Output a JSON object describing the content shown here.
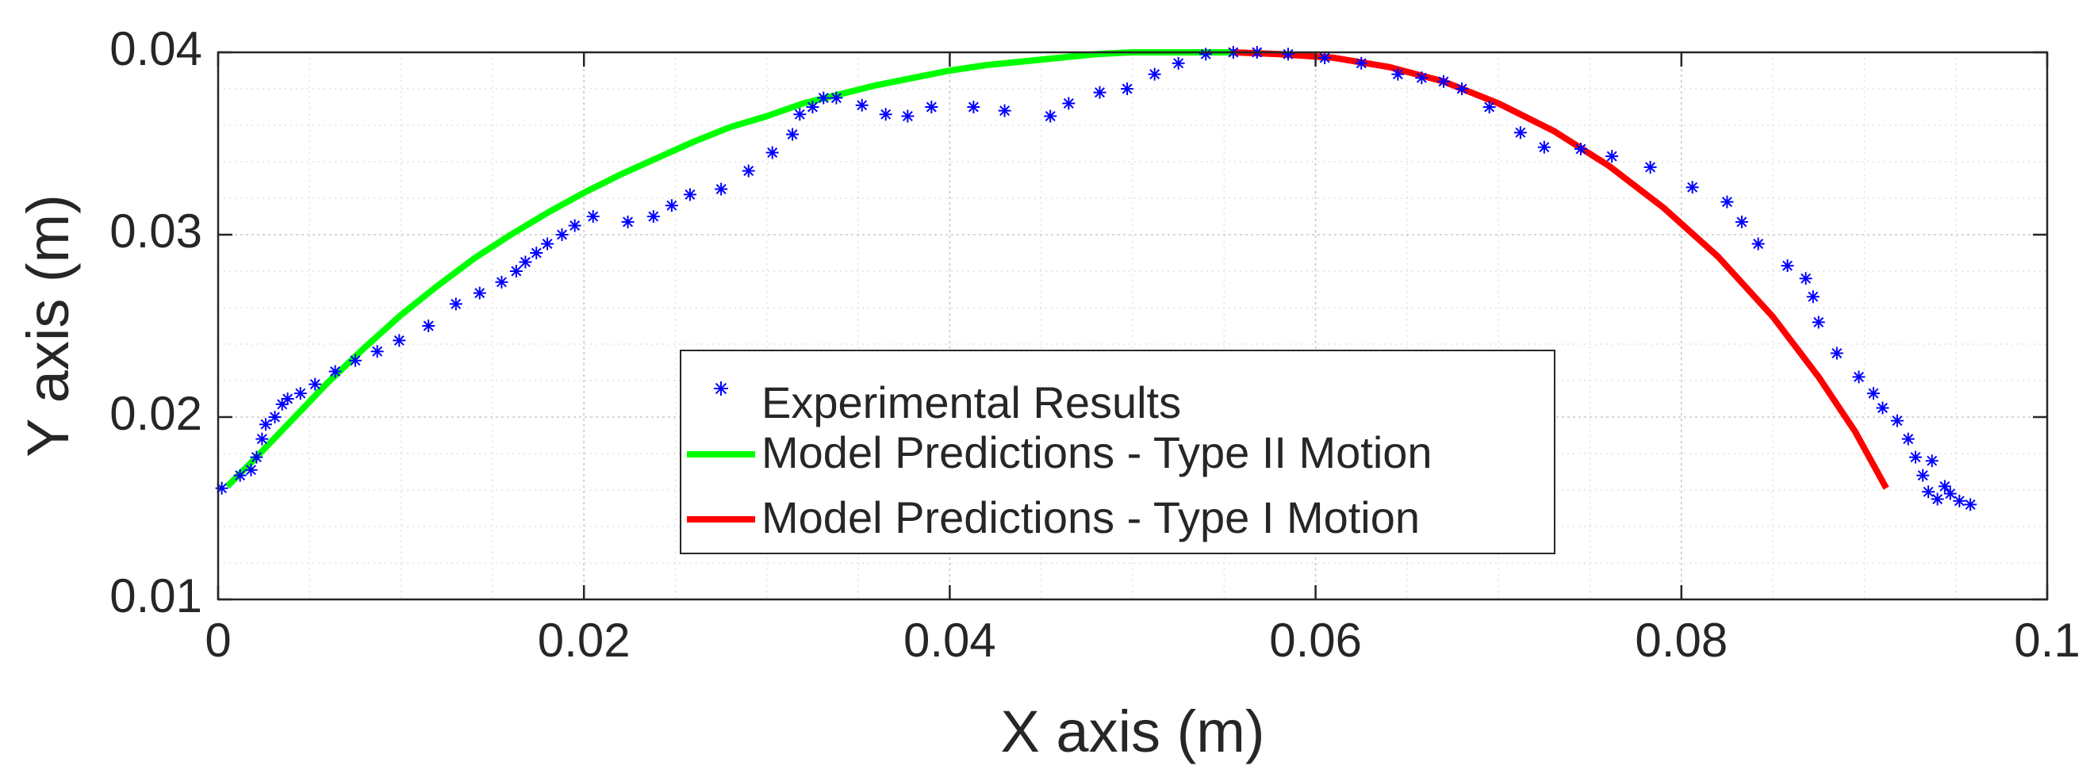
{
  "chart_data": {
    "type": "line",
    "title": "",
    "xlabel": "X axis (m)",
    "ylabel": "Y axis (m)",
    "xlim": [
      0,
      0.1
    ],
    "ylim": [
      0.01,
      0.04
    ],
    "x_ticks": [
      0,
      0.02,
      0.04,
      0.06,
      0.08,
      0.1
    ],
    "x_tick_labels": [
      "0",
      "0.02",
      "0.04",
      "0.06",
      "0.08",
      "0.1"
    ],
    "y_ticks": [
      0.01,
      0.02,
      0.03,
      0.04
    ],
    "y_tick_labels": [
      "0.01",
      "0.02",
      "0.03",
      "0.04"
    ],
    "x_minor_step": 0.005,
    "y_minor_step": 0.002,
    "grid": true,
    "minor_grid": true,
    "legend_position": "center",
    "series": [
      {
        "name": "Experimental Results",
        "kind": "scatter",
        "marker": "*",
        "color": "#0000ff",
        "points": [
          [
            0.0002,
            0.0161
          ],
          [
            0.0012,
            0.0168
          ],
          [
            0.0018,
            0.0171
          ],
          [
            0.0021,
            0.0178
          ],
          [
            0.0024,
            0.0188
          ],
          [
            0.0026,
            0.0196
          ],
          [
            0.0031,
            0.02
          ],
          [
            0.0035,
            0.0207
          ],
          [
            0.0038,
            0.021
          ],
          [
            0.0045,
            0.0213
          ],
          [
            0.0053,
            0.0218
          ],
          [
            0.0064,
            0.0225
          ],
          [
            0.0075,
            0.0231
          ],
          [
            0.0087,
            0.0236
          ],
          [
            0.0099,
            0.0242
          ],
          [
            0.0115,
            0.025
          ],
          [
            0.013,
            0.0262
          ],
          [
            0.0143,
            0.0268
          ],
          [
            0.0155,
            0.0274
          ],
          [
            0.0163,
            0.028
          ],
          [
            0.0168,
            0.0285
          ],
          [
            0.0174,
            0.029
          ],
          [
            0.018,
            0.0295
          ],
          [
            0.0188,
            0.03
          ],
          [
            0.0195,
            0.0305
          ],
          [
            0.0205,
            0.031
          ],
          [
            0.0224,
            0.0307
          ],
          [
            0.0238,
            0.031
          ],
          [
            0.0248,
            0.0316
          ],
          [
            0.0258,
            0.0322
          ],
          [
            0.0275,
            0.0325
          ],
          [
            0.029,
            0.0335
          ],
          [
            0.0303,
            0.0345
          ],
          [
            0.0314,
            0.0355
          ],
          [
            0.0318,
            0.0366
          ],
          [
            0.0325,
            0.037
          ],
          [
            0.0331,
            0.0375
          ],
          [
            0.0338,
            0.0375
          ],
          [
            0.0352,
            0.0371
          ],
          [
            0.0365,
            0.0366
          ],
          [
            0.0377,
            0.0365
          ],
          [
            0.039,
            0.037
          ],
          [
            0.0413,
            0.037
          ],
          [
            0.043,
            0.0368
          ],
          [
            0.0455,
            0.0365
          ],
          [
            0.0465,
            0.0372
          ],
          [
            0.0482,
            0.0378
          ],
          [
            0.0497,
            0.038
          ],
          [
            0.0512,
            0.0388
          ],
          [
            0.0525,
            0.0394
          ],
          [
            0.054,
            0.0399
          ],
          [
            0.0555,
            0.04
          ],
          [
            0.0568,
            0.04
          ],
          [
            0.0585,
            0.0399
          ],
          [
            0.0605,
            0.0397
          ],
          [
            0.0625,
            0.0394
          ],
          [
            0.0645,
            0.0388
          ],
          [
            0.0658,
            0.0386
          ],
          [
            0.067,
            0.0384
          ],
          [
            0.068,
            0.038
          ],
          [
            0.0695,
            0.037
          ],
          [
            0.0712,
            0.0356
          ],
          [
            0.0725,
            0.0348
          ],
          [
            0.0745,
            0.0347
          ],
          [
            0.0762,
            0.0343
          ],
          [
            0.0783,
            0.0337
          ],
          [
            0.0806,
            0.0326
          ],
          [
            0.0825,
            0.0318
          ],
          [
            0.0833,
            0.0307
          ],
          [
            0.0842,
            0.0295
          ],
          [
            0.0858,
            0.0283
          ],
          [
            0.0868,
            0.0276
          ],
          [
            0.0872,
            0.0266
          ],
          [
            0.0875,
            0.0252
          ],
          [
            0.0885,
            0.0235
          ],
          [
            0.0897,
            0.0222
          ],
          [
            0.0905,
            0.0213
          ],
          [
            0.091,
            0.0205
          ],
          [
            0.0918,
            0.0198
          ],
          [
            0.0924,
            0.0188
          ],
          [
            0.0928,
            0.0178
          ],
          [
            0.0932,
            0.0168
          ],
          [
            0.0935,
            0.0159
          ],
          [
            0.0937,
            0.0176
          ],
          [
            0.094,
            0.0155
          ],
          [
            0.0944,
            0.0162
          ],
          [
            0.0947,
            0.0158
          ],
          [
            0.0952,
            0.0154
          ],
          [
            0.0958,
            0.0152
          ]
        ]
      },
      {
        "name": "Model Predictions - Type II Motion",
        "kind": "line",
        "color": "#00ff00",
        "points": [
          [
            0.0005,
            0.0162
          ],
          [
            0.002,
            0.0177
          ],
          [
            0.004,
            0.0198
          ],
          [
            0.006,
            0.0219
          ],
          [
            0.008,
            0.0238
          ],
          [
            0.01,
            0.0256
          ],
          [
            0.012,
            0.0272
          ],
          [
            0.014,
            0.0287
          ],
          [
            0.016,
            0.03
          ],
          [
            0.018,
            0.0312
          ],
          [
            0.02,
            0.0323
          ],
          [
            0.022,
            0.0333
          ],
          [
            0.024,
            0.0342
          ],
          [
            0.026,
            0.0351
          ],
          [
            0.028,
            0.0359
          ],
          [
            0.03,
            0.0365
          ],
          [
            0.032,
            0.0372
          ],
          [
            0.034,
            0.0377
          ],
          [
            0.036,
            0.0382
          ],
          [
            0.038,
            0.0386
          ],
          [
            0.04,
            0.039
          ],
          [
            0.042,
            0.0393
          ],
          [
            0.044,
            0.0395
          ],
          [
            0.046,
            0.0397
          ],
          [
            0.048,
            0.0399
          ],
          [
            0.05,
            0.04
          ],
          [
            0.052,
            0.04
          ],
          [
            0.054,
            0.04
          ],
          [
            0.0555,
            0.04
          ]
        ]
      },
      {
        "name": "Model Predictions - Type I Motion",
        "kind": "line",
        "color": "#ff0000",
        "points": [
          [
            0.0555,
            0.04
          ],
          [
            0.058,
            0.0399
          ],
          [
            0.061,
            0.0397
          ],
          [
            0.064,
            0.0392
          ],
          [
            0.067,
            0.0384
          ],
          [
            0.07,
            0.0372
          ],
          [
            0.073,
            0.0357
          ],
          [
            0.076,
            0.0338
          ],
          [
            0.079,
            0.0315
          ],
          [
            0.082,
            0.0288
          ],
          [
            0.085,
            0.0255
          ],
          [
            0.0875,
            0.0222
          ],
          [
            0.0895,
            0.0192
          ],
          [
            0.0906,
            0.0172
          ],
          [
            0.0912,
            0.0161
          ]
        ]
      }
    ]
  }
}
